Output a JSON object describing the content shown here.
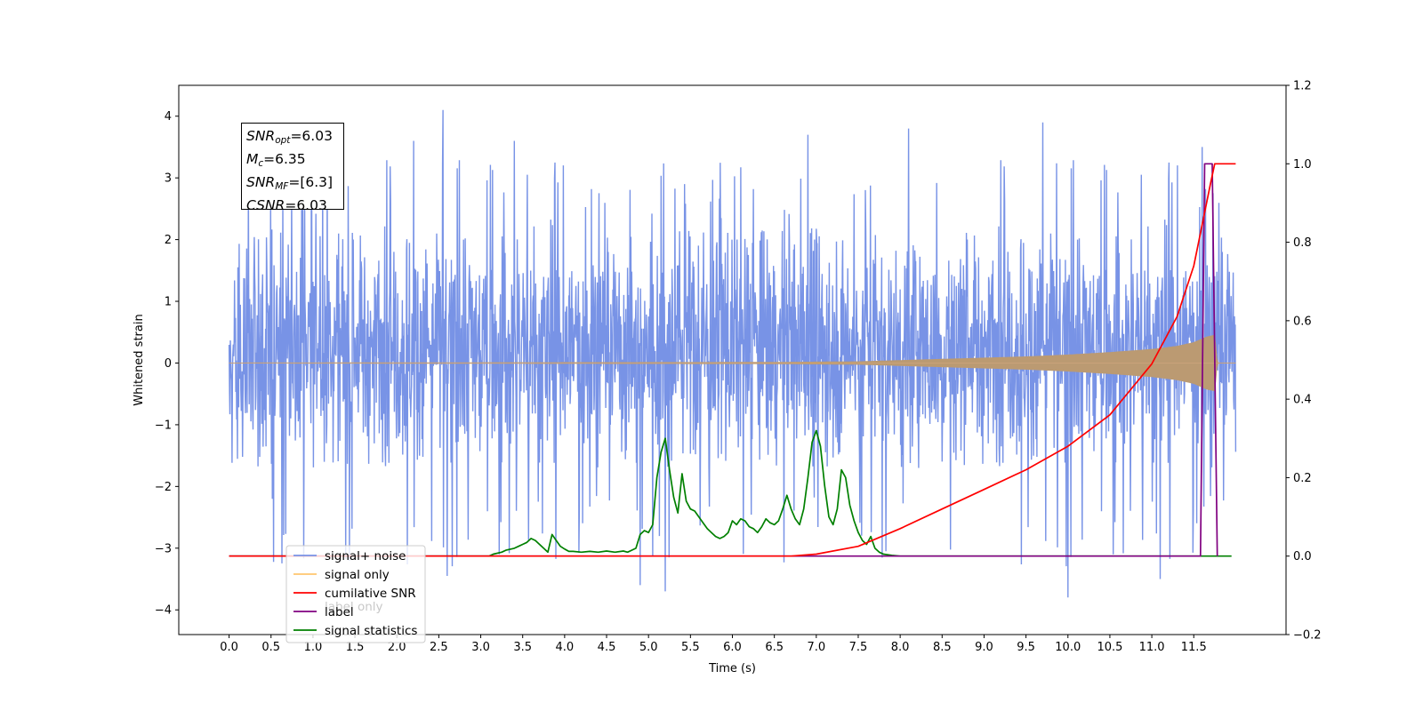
{
  "chart_data": {
    "type": "line",
    "xlabel": "Time (s)",
    "ylabel": "Whitened strain",
    "xlim": [
      -0.6,
      12.6
    ],
    "ylim": [
      -4.4,
      4.5
    ],
    "y2lim": [
      -0.2,
      1.2
    ],
    "x_ticks": [
      "0.0",
      "0.5",
      "1.0",
      "1.5",
      "2.0",
      "2.5",
      "3.0",
      "3.5",
      "4.0",
      "4.5",
      "5.0",
      "5.5",
      "6.0",
      "6.5",
      "7.0",
      "7.5",
      "8.0",
      "8.5",
      "9.0",
      "9.5",
      "10.0",
      "10.5",
      "11.0",
      "11.5"
    ],
    "y_ticks": [
      "4",
      "3",
      "2",
      "1",
      "0",
      "−1",
      "−2",
      "−3",
      "−4"
    ],
    "y2_ticks": [
      "1.2",
      "1.0",
      "0.8",
      "0.6",
      "0.4",
      "0.2",
      "0.0",
      "−0.2"
    ],
    "annotation": {
      "snr_opt": {
        "sym": "SNR",
        "sub": "opt",
        "value": "=6.03"
      },
      "mc": {
        "sym": "M",
        "sub": "c",
        "value": "=6.35"
      },
      "snr_mf": {
        "sym": "SNR",
        "sub": "MF",
        "value": "=[6.3]"
      },
      "csnr": {
        "sym": "CSNR",
        "value": "=6.03"
      }
    },
    "legend": {
      "location": "lower-left",
      "entries": [
        {
          "label": "signal+ noise",
          "color": "#7893e6"
        },
        {
          "label": "signal only",
          "color": "#ffc66e"
        },
        {
          "label": "cumilative SNR",
          "color": "#ff0000"
        },
        {
          "label": "label",
          "color": "#800080"
        },
        {
          "label": "signal statistics",
          "color": "#008000"
        }
      ],
      "hidden_text": "label only"
    },
    "series": [
      {
        "name": "signal+ noise",
        "axis": "left",
        "color": "#7893e6",
        "x_range": [
          0.0,
          12.0
        ],
        "band": [
          -1.7,
          2.2
        ],
        "notable_peaks": [
          {
            "x": 2.55,
            "y": 4.1
          },
          {
            "x": 2.2,
            "y": 3.6
          },
          {
            "x": 3.4,
            "y": 3.6
          },
          {
            "x": 6.9,
            "y": 3.7
          },
          {
            "x": 8.1,
            "y": 3.8
          },
          {
            "x": 9.7,
            "y": 3.9
          },
          {
            "x": 11.6,
            "y": 3.5
          },
          {
            "x": 5.2,
            "y": -3.7
          },
          {
            "x": 10.0,
            "y": -3.8
          },
          {
            "x": 4.9,
            "y": -3.6
          },
          {
            "x": 11.1,
            "y": -3.5
          },
          {
            "x": 2.6,
            "y": -3.45
          }
        ]
      },
      {
        "name": "signal only",
        "axis": "left",
        "color": "#ffc66e",
        "envelope": {
          "x": [
            0.0,
            6.5,
            7.5,
            8.0,
            8.5,
            9.0,
            9.5,
            10.0,
            10.5,
            11.0,
            11.3,
            11.5,
            11.65,
            11.75,
            11.78,
            12.0
          ],
          "amp": [
            0.0,
            0.01,
            0.02,
            0.04,
            0.06,
            0.08,
            0.1,
            0.13,
            0.17,
            0.22,
            0.27,
            0.33,
            0.42,
            0.45,
            0.0,
            0.0
          ]
        }
      },
      {
        "name": "cumilative SNR",
        "axis": "right",
        "color": "#ff0000",
        "x": [
          0.0,
          6.7,
          7.0,
          7.5,
          8.0,
          8.5,
          9.0,
          9.5,
          10.0,
          10.5,
          11.0,
          11.3,
          11.5,
          11.7,
          11.75,
          12.0
        ],
        "values": [
          0.0,
          0.0,
          0.005,
          0.025,
          0.07,
          0.12,
          0.17,
          0.22,
          0.28,
          0.36,
          0.49,
          0.61,
          0.74,
          0.95,
          1.0,
          1.0
        ]
      },
      {
        "name": "label",
        "axis": "right",
        "color": "#800080",
        "x": [
          0.0,
          11.58,
          11.63,
          11.72,
          11.78
        ],
        "values": [
          0.0,
          0.0,
          1.0,
          1.0,
          0.0
        ]
      },
      {
        "name": "signal statistics",
        "axis": "right",
        "color": "#008000",
        "x": [
          0.0,
          3.05,
          3.1,
          3.15,
          3.25,
          3.3,
          3.4,
          3.45,
          3.5,
          3.55,
          3.6,
          3.65,
          3.7,
          3.75,
          3.8,
          3.85,
          3.9,
          3.95,
          4.0,
          4.05,
          4.1,
          4.2,
          4.3,
          4.4,
          4.5,
          4.6,
          4.7,
          4.75,
          4.8,
          4.85,
          4.9,
          4.95,
          5.0,
          5.05,
          5.1,
          5.15,
          5.2,
          5.25,
          5.3,
          5.35,
          5.4,
          5.45,
          5.5,
          5.55,
          5.6,
          5.65,
          5.7,
          5.75,
          5.8,
          5.85,
          5.9,
          5.95,
          6.0,
          6.05,
          6.1,
          6.15,
          6.2,
          6.25,
          6.3,
          6.35,
          6.4,
          6.45,
          6.5,
          6.55,
          6.6,
          6.65,
          6.7,
          6.75,
          6.8,
          6.85,
          6.9,
          6.95,
          7.0,
          7.05,
          7.1,
          7.15,
          7.2,
          7.25,
          7.3,
          7.35,
          7.4,
          7.45,
          7.5,
          7.55,
          7.6,
          7.65,
          7.7,
          7.75,
          7.8,
          7.9,
          8.0,
          11.95
        ],
        "values": [
          0.0,
          0.0,
          0.0,
          0.005,
          0.01,
          0.015,
          0.02,
          0.025,
          0.03,
          0.035,
          0.045,
          0.04,
          0.03,
          0.02,
          0.01,
          0.055,
          0.04,
          0.025,
          0.018,
          0.012,
          0.012,
          0.01,
          0.012,
          0.01,
          0.013,
          0.01,
          0.013,
          0.01,
          0.015,
          0.02,
          0.055,
          0.065,
          0.06,
          0.08,
          0.2,
          0.265,
          0.3,
          0.22,
          0.15,
          0.11,
          0.21,
          0.14,
          0.12,
          0.115,
          0.1,
          0.085,
          0.07,
          0.06,
          0.05,
          0.045,
          0.05,
          0.06,
          0.09,
          0.08,
          0.095,
          0.09,
          0.075,
          0.07,
          0.06,
          0.075,
          0.095,
          0.085,
          0.08,
          0.09,
          0.12,
          0.155,
          0.12,
          0.095,
          0.08,
          0.12,
          0.2,
          0.29,
          0.32,
          0.28,
          0.18,
          0.1,
          0.08,
          0.12,
          0.22,
          0.2,
          0.13,
          0.09,
          0.06,
          0.04,
          0.03,
          0.05,
          0.02,
          0.01,
          0.005,
          0.002,
          0.0,
          0.0
        ]
      }
    ]
  }
}
